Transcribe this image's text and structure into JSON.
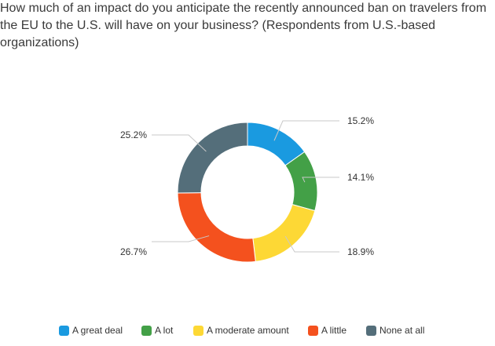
{
  "chart_data": {
    "type": "pie",
    "variant": "donut",
    "title": "How much of an impact do you anticipate the recently announced ban on travelers from the EU to the U.S. will have on your business? (Respondents from U.S.-based organizations)",
    "categories": [
      "A great deal",
      "A lot",
      "A moderate amount",
      "A little",
      "None at all"
    ],
    "values": [
      15.2,
      14.1,
      18.9,
      26.7,
      25.2
    ],
    "labels": [
      "15.2%",
      "14.1%",
      "18.9%",
      "26.7%",
      "25.2%"
    ],
    "colors": [
      "#1a9ae0",
      "#43a047",
      "#fdd835",
      "#f4511e",
      "#546e7a"
    ],
    "legend_position": "bottom"
  }
}
